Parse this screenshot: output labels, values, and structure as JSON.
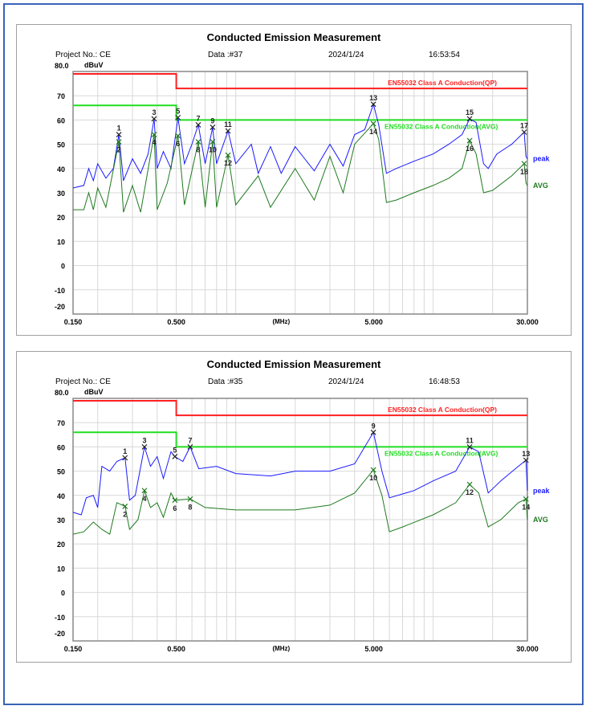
{
  "charts_meta": {
    "limit_qp_label": "EN55032 Class A Conduction(QP)",
    "limit_avg_label": "EN55032 Class A Conduction(AVG)",
    "peak_label": "peak",
    "avg_label": "AVG",
    "colors": {
      "qp_limit": "#ff2020",
      "avg_limit": "#22dd22",
      "peak": "#1a1aff",
      "avg": "#1f7a1f",
      "grid": "#d8d8d8"
    }
  },
  "chart_data": [
    {
      "type": "line",
      "title": "Conducted Emission Measurement",
      "header": {
        "project": "Project No.: CE",
        "data": "Data :#37",
        "date": "2024/1/24",
        "time": "16:53:54"
      },
      "ylabel": "dBuV",
      "xlabel": "(MHz)",
      "xscale": "log",
      "xlim": [
        0.15,
        30
      ],
      "ylim": [
        -20,
        80
      ],
      "grid": true,
      "yticks": [
        "80.0",
        "70",
        "60",
        "50",
        "40",
        "30",
        "20",
        "10",
        "0",
        "-10",
        "-20"
      ],
      "xticks": [
        "0.150",
        "0.500",
        "5.000",
        "30.000"
      ],
      "limits": {
        "qp": [
          [
            0.15,
            79
          ],
          [
            0.5,
            79
          ],
          [
            0.5,
            73
          ],
          [
            30,
            73
          ]
        ],
        "avg": [
          [
            0.15,
            66
          ],
          [
            0.5,
            66
          ],
          [
            0.5,
            60
          ],
          [
            30,
            60
          ]
        ]
      },
      "series": [
        {
          "name": "peak",
          "points": [
            [
              0.15,
              32
            ],
            [
              0.17,
              33
            ],
            [
              0.18,
              40
            ],
            [
              0.19,
              35
            ],
            [
              0.2,
              42
            ],
            [
              0.22,
              36
            ],
            [
              0.24,
              40
            ],
            [
              0.256,
              54
            ],
            [
              0.27,
              35
            ],
            [
              0.3,
              44
            ],
            [
              0.33,
              38
            ],
            [
              0.36,
              46
            ],
            [
              0.386,
              60.5
            ],
            [
              0.4,
              40
            ],
            [
              0.43,
              47
            ],
            [
              0.47,
              40
            ],
            [
              0.51,
              61
            ],
            [
              0.55,
              42
            ],
            [
              0.6,
              50
            ],
            [
              0.646,
              58
            ],
            [
              0.7,
              42
            ],
            [
              0.764,
              57
            ],
            [
              0.8,
              42
            ],
            [
              0.914,
              55.5
            ],
            [
              1.0,
              42
            ],
            [
              1.2,
              50
            ],
            [
              1.3,
              38
            ],
            [
              1.5,
              49
            ],
            [
              1.7,
              38
            ],
            [
              2,
              49
            ],
            [
              2.5,
              39
            ],
            [
              3,
              50
            ],
            [
              3.5,
              41
            ],
            [
              4,
              54
            ],
            [
              4.5,
              56
            ],
            [
              4.98,
              66.5
            ],
            [
              5.3,
              58
            ],
            [
              5.8,
              38
            ],
            [
              6.5,
              40
            ],
            [
              8,
              43
            ],
            [
              10,
              46
            ],
            [
              12,
              50
            ],
            [
              14,
              54
            ],
            [
              15.3,
              60.5
            ],
            [
              16.5,
              59
            ],
            [
              18,
              42
            ],
            [
              19,
              40
            ],
            [
              21,
              46
            ],
            [
              25,
              50
            ],
            [
              28.9,
              55
            ],
            [
              29.5,
              45
            ],
            [
              30,
              44
            ]
          ]
        },
        {
          "name": "AVG",
          "points": [
            [
              0.15,
              23
            ],
            [
              0.17,
              23
            ],
            [
              0.18,
              30
            ],
            [
              0.19,
              23
            ],
            [
              0.2,
              32
            ],
            [
              0.22,
              24
            ],
            [
              0.256,
              51
            ],
            [
              0.27,
              22
            ],
            [
              0.3,
              33
            ],
            [
              0.33,
              22
            ],
            [
              0.386,
              54
            ],
            [
              0.4,
              23
            ],
            [
              0.45,
              34
            ],
            [
              0.51,
              53.5
            ],
            [
              0.55,
              25
            ],
            [
              0.646,
              51
            ],
            [
              0.7,
              24
            ],
            [
              0.764,
              51
            ],
            [
              0.8,
              24
            ],
            [
              0.914,
              45.5
            ],
            [
              1,
              25
            ],
            [
              1.3,
              37
            ],
            [
              1.5,
              24
            ],
            [
              2,
              40
            ],
            [
              2.5,
              27
            ],
            [
              3,
              45
            ],
            [
              3.5,
              30
            ],
            [
              4,
              50
            ],
            [
              4.98,
              58.5
            ],
            [
              5.3,
              52
            ],
            [
              5.8,
              26
            ],
            [
              6.5,
              27
            ],
            [
              8,
              30
            ],
            [
              10,
              33
            ],
            [
              12,
              36
            ],
            [
              14,
              40
            ],
            [
              15.3,
              51.5
            ],
            [
              16.5,
              46
            ],
            [
              18,
              30
            ],
            [
              20,
              31
            ],
            [
              25,
              37
            ],
            [
              28.9,
              42
            ],
            [
              29.5,
              34
            ],
            [
              30,
              33
            ]
          ]
        }
      ],
      "markers": [
        {
          "label": "1",
          "f": 0.256,
          "v": 54,
          "type": "peak"
        },
        {
          "label": "2",
          "f": 0.256,
          "v": 51,
          "type": "avg"
        },
        {
          "label": "3",
          "f": 0.386,
          "v": 60.5,
          "type": "peak"
        },
        {
          "label": "4",
          "f": 0.386,
          "v": 54,
          "type": "avg"
        },
        {
          "label": "5",
          "f": 0.51,
          "v": 61,
          "type": "peak"
        },
        {
          "label": "6",
          "f": 0.51,
          "v": 53.5,
          "type": "avg"
        },
        {
          "label": "7",
          "f": 0.646,
          "v": 58,
          "type": "peak"
        },
        {
          "label": "8",
          "f": 0.646,
          "v": 51,
          "type": "avg"
        },
        {
          "label": "9",
          "f": 0.764,
          "v": 57,
          "type": "peak"
        },
        {
          "label": "10",
          "f": 0.764,
          "v": 51,
          "type": "avg"
        },
        {
          "label": "11",
          "f": 0.914,
          "v": 55.5,
          "type": "peak"
        },
        {
          "label": "12",
          "f": 0.914,
          "v": 45.5,
          "type": "avg"
        },
        {
          "label": "13",
          "f": 4.98,
          "v": 66.5,
          "type": "peak"
        },
        {
          "label": "14",
          "f": 4.98,
          "v": 58.5,
          "type": "avg"
        },
        {
          "label": "15",
          "f": 15.3,
          "v": 60.5,
          "type": "peak"
        },
        {
          "label": "16",
          "f": 15.3,
          "v": 51.5,
          "type": "avg"
        },
        {
          "label": "17",
          "f": 28.9,
          "v": 55,
          "type": "peak"
        },
        {
          "label": "18",
          "f": 28.9,
          "v": 42,
          "type": "avg"
        }
      ]
    },
    {
      "type": "line",
      "title": "Conducted Emission Measurement",
      "header": {
        "project": "Project No.: CE",
        "data": "Data :#35",
        "date": "2024/1/24",
        "time": "16:48:53"
      },
      "ylabel": "dBuV",
      "xlabel": "(MHz)",
      "xscale": "log",
      "xlim": [
        0.15,
        30
      ],
      "ylim": [
        -20,
        80
      ],
      "grid": true,
      "yticks": [
        "80.0",
        "70",
        "60",
        "50",
        "40",
        "30",
        "20",
        "10",
        "0",
        "-10",
        "-20"
      ],
      "xticks": [
        "0.150",
        "0.500",
        "5.000",
        "30.000"
      ],
      "limits": {
        "qp": [
          [
            0.15,
            79
          ],
          [
            0.5,
            79
          ],
          [
            0.5,
            73
          ],
          [
            30,
            73
          ]
        ],
        "avg": [
          [
            0.15,
            66
          ],
          [
            0.5,
            66
          ],
          [
            0.5,
            60
          ],
          [
            30,
            60
          ]
        ]
      },
      "series": [
        {
          "name": "peak",
          "points": [
            [
              0.15,
              33
            ],
            [
              0.165,
              32
            ],
            [
              0.175,
              39
            ],
            [
              0.19,
              40
            ],
            [
              0.2,
              35
            ],
            [
              0.21,
              52
            ],
            [
              0.23,
              50
            ],
            [
              0.25,
              54
            ],
            [
              0.275,
              55.5
            ],
            [
              0.29,
              38
            ],
            [
              0.31,
              40
            ],
            [
              0.345,
              60
            ],
            [
              0.37,
              52
            ],
            [
              0.4,
              56
            ],
            [
              0.43,
              47
            ],
            [
              0.47,
              58
            ],
            [
              0.492,
              56
            ],
            [
              0.54,
              54
            ],
            [
              0.588,
              60
            ],
            [
              0.65,
              51
            ],
            [
              0.8,
              52
            ],
            [
              1,
              49
            ],
            [
              1.5,
              48
            ],
            [
              2,
              50
            ],
            [
              3,
              50
            ],
            [
              4,
              53
            ],
            [
              4.98,
              66
            ],
            [
              5.5,
              50
            ],
            [
              6,
              39
            ],
            [
              8,
              42
            ],
            [
              10,
              46
            ],
            [
              13,
              50
            ],
            [
              15.3,
              60
            ],
            [
              17,
              58
            ],
            [
              19,
              41
            ],
            [
              22,
              46
            ],
            [
              27,
              52
            ],
            [
              29.5,
              54.5
            ],
            [
              30,
              42
            ]
          ]
        },
        {
          "name": "AVG",
          "points": [
            [
              0.15,
              24
            ],
            [
              0.17,
              25
            ],
            [
              0.19,
              29
            ],
            [
              0.21,
              26
            ],
            [
              0.23,
              24
            ],
            [
              0.25,
              37
            ],
            [
              0.275,
              35.5
            ],
            [
              0.29,
              26
            ],
            [
              0.32,
              30
            ],
            [
              0.345,
              42
            ],
            [
              0.37,
              35
            ],
            [
              0.4,
              37
            ],
            [
              0.43,
              31
            ],
            [
              0.47,
              41
            ],
            [
              0.492,
              38
            ],
            [
              0.588,
              38.5
            ],
            [
              0.7,
              35
            ],
            [
              1,
              34
            ],
            [
              2,
              34
            ],
            [
              3,
              36
            ],
            [
              4,
              41
            ],
            [
              4.98,
              50.5
            ],
            [
              5.5,
              40
            ],
            [
              6,
              25
            ],
            [
              7,
              27
            ],
            [
              10,
              32
            ],
            [
              13,
              37
            ],
            [
              15.3,
              44.5
            ],
            [
              17,
              41
            ],
            [
              19,
              27
            ],
            [
              22,
              30
            ],
            [
              27,
              37
            ],
            [
              29.5,
              38.5
            ],
            [
              30,
              30
            ]
          ]
        }
      ],
      "markers": [
        {
          "label": "1",
          "f": 0.275,
          "v": 55.5,
          "type": "peak"
        },
        {
          "label": "2",
          "f": 0.275,
          "v": 35.5,
          "type": "avg"
        },
        {
          "label": "3",
          "f": 0.345,
          "v": 60,
          "type": "peak"
        },
        {
          "label": "4",
          "f": 0.345,
          "v": 42,
          "type": "avg"
        },
        {
          "label": "5",
          "f": 0.492,
          "v": 56,
          "type": "peak"
        },
        {
          "label": "6",
          "f": 0.492,
          "v": 38,
          "type": "avg"
        },
        {
          "label": "7",
          "f": 0.588,
          "v": 60,
          "type": "peak"
        },
        {
          "label": "8",
          "f": 0.588,
          "v": 38.5,
          "type": "avg"
        },
        {
          "label": "9",
          "f": 4.98,
          "v": 66,
          "type": "peak"
        },
        {
          "label": "10",
          "f": 4.98,
          "v": 50.5,
          "type": "avg"
        },
        {
          "label": "11",
          "f": 15.3,
          "v": 60,
          "type": "peak"
        },
        {
          "label": "12",
          "f": 15.3,
          "v": 44.5,
          "type": "avg"
        },
        {
          "label": "13",
          "f": 29.5,
          "v": 54.5,
          "type": "peak"
        },
        {
          "label": "14",
          "f": 29.5,
          "v": 38.5,
          "type": "avg"
        }
      ]
    }
  ]
}
